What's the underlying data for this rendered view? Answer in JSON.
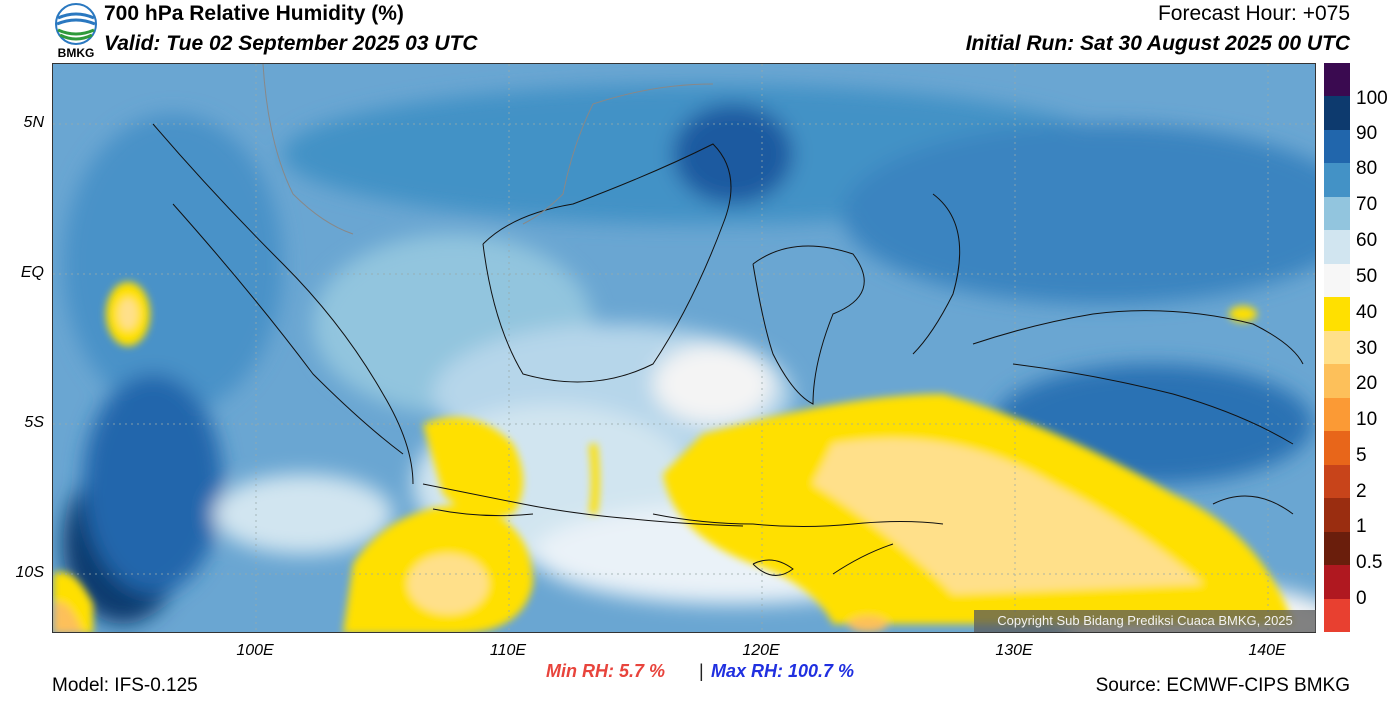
{
  "header": {
    "logo_text": "BMKG",
    "title": "700 hPa Relative Humidity (%)",
    "valid": "Valid: Tue 02 September 2025 03 UTC",
    "forecast_hour": "Forecast Hour: +075",
    "initial_run": "Initial Run: Sat 30 August 2025 00 UTC"
  },
  "axes": {
    "lat_labels": [
      "5N",
      "EQ",
      "5S",
      "10S"
    ],
    "lon_labels": [
      "100E",
      "110E",
      "120E",
      "130E",
      "140E"
    ]
  },
  "colorbar": {
    "labels": [
      "100",
      "90",
      "80",
      "70",
      "60",
      "50",
      "40",
      "30",
      "20",
      "10",
      "5",
      "2",
      "1",
      "0.5",
      "0"
    ],
    "colors": [
      "#3a0a50",
      "#0d3a6e",
      "#2166ac",
      "#4392c6",
      "#92c5de",
      "#d1e5f0",
      "#f7f7f7",
      "#ffe000",
      "#ffe08a",
      "#fdc05a",
      "#fb9a35",
      "#e8661a",
      "#c8441a",
      "#9a2d10",
      "#6a1e0c",
      "#b01820",
      "#e84030"
    ]
  },
  "copyright": "Copyright Sub Bidang Prediksi Cuaca BMKG, 2025",
  "footer": {
    "min_rh": "Min RH:   5.7 %",
    "separator": "|",
    "max_rh": "Max RH: 100.7 %",
    "model": "Model: IFS-0.125",
    "source": "Source: ECMWF-CIPS BMKG"
  }
}
